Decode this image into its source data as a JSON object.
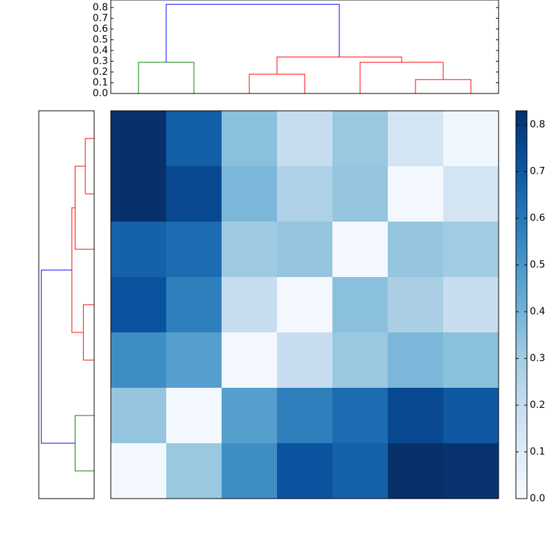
{
  "chart_data": [
    {
      "type": "dendrogram",
      "orientation": "top",
      "ylim": [
        0,
        0.87
      ],
      "yticks": [
        {
          "value": 0,
          "label": "0.0"
        },
        {
          "value": 0.1,
          "label": "0.1"
        },
        {
          "value": 0.2,
          "label": "0.2"
        },
        {
          "value": 0.3,
          "label": "0.3"
        },
        {
          "value": 0.4,
          "label": "0.4"
        },
        {
          "value": 0.5,
          "label": "0.5"
        },
        {
          "value": 0.6,
          "label": "0.6"
        },
        {
          "value": 0.7,
          "label": "0.7"
        },
        {
          "value": 0.8,
          "label": "0.8"
        }
      ],
      "links": [
        {
          "color": "#008000",
          "x": [
            0,
            0,
            1,
            1
          ],
          "y": [
            0,
            0.29,
            0.29,
            0
          ]
        },
        {
          "color": "#ff0000",
          "x": [
            2,
            2,
            3,
            3
          ],
          "y": [
            0,
            0.18,
            0.18,
            0
          ]
        },
        {
          "color": "#ff0000",
          "x": [
            5,
            5,
            6,
            6
          ],
          "y": [
            0,
            0.13,
            0.13,
            0
          ]
        },
        {
          "color": "#ff0000",
          "x": [
            4,
            4,
            5.5,
            5.5
          ],
          "y": [
            0,
            0.29,
            0.29,
            0.13
          ]
        },
        {
          "color": "#ff0000",
          "x": [
            2.5,
            2.5,
            4.75,
            4.75
          ],
          "y": [
            0.18,
            0.34,
            0.34,
            0.29
          ]
        },
        {
          "color": "#0000ff",
          "x": [
            0.5,
            0.5,
            3.625,
            3.625
          ],
          "y": [
            0.29,
            0.83,
            0.83,
            0.34
          ]
        }
      ]
    },
    {
      "type": "dendrogram",
      "orientation": "left",
      "xlim": [
        0,
        0.87
      ],
      "links": [
        {
          "color": "#ff0000",
          "x": [
            0,
            0,
            1,
            1
          ],
          "y": [
            0,
            0.14,
            0.14,
            0
          ]
        },
        {
          "color": "#ff0000",
          "x": [
            0.5,
            0.5,
            2,
            2
          ],
          "y": [
            0.14,
            0.3,
            0.3,
            0
          ]
        },
        {
          "color": "#ff0000",
          "x": [
            3,
            3,
            4,
            4
          ],
          "y": [
            0,
            0.17,
            0.17,
            0
          ]
        },
        {
          "color": "#ff0000",
          "x": [
            1.25,
            1.25,
            3.5,
            3.5
          ],
          "y": [
            0.3,
            0.35,
            0.35,
            0.17
          ]
        },
        {
          "color": "#008000",
          "x": [
            5,
            5,
            6,
            6
          ],
          "y": [
            0,
            0.3,
            0.3,
            0
          ]
        },
        {
          "color": "#0000ff",
          "x": [
            2.375,
            2.375,
            5.5,
            5.5
          ],
          "y": [
            0.35,
            0.83,
            0.83,
            0.3
          ]
        }
      ]
    },
    {
      "type": "heatmap",
      "values": [
        [
          0.83,
          0.68,
          0.35,
          0.2,
          0.32,
          0.15,
          0.03
        ],
        [
          0.83,
          0.75,
          0.38,
          0.27,
          0.33,
          0.02,
          0.15
        ],
        [
          0.67,
          0.64,
          0.31,
          0.33,
          0.02,
          0.33,
          0.3
        ],
        [
          0.72,
          0.58,
          0.2,
          0.02,
          0.35,
          0.28,
          0.2
        ],
        [
          0.53,
          0.47,
          0.02,
          0.2,
          0.32,
          0.38,
          0.35
        ],
        [
          0.33,
          0.02,
          0.47,
          0.58,
          0.64,
          0.75,
          0.7
        ],
        [
          0.02,
          0.32,
          0.53,
          0.72,
          0.67,
          0.83,
          0.82
        ]
      ],
      "colormap": [
        "#f7fbff",
        "#deebf7",
        "#c6dbef",
        "#9ecae1",
        "#6baed6",
        "#4292c6",
        "#2171b5",
        "#08519c",
        "#08306b"
      ],
      "clim": [
        0,
        0.83
      ],
      "colorbar_ticks": [
        {
          "value": 0,
          "label": "0.0"
        },
        {
          "value": 0.1,
          "label": "0.1"
        },
        {
          "value": 0.2,
          "label": "0.2"
        },
        {
          "value": 0.3,
          "label": "0.3"
        },
        {
          "value": 0.4,
          "label": "0.4"
        },
        {
          "value": 0.5,
          "label": "0.5"
        },
        {
          "value": 0.6,
          "label": "0.6"
        },
        {
          "value": 0.7,
          "label": "0.7"
        },
        {
          "value": 0.8,
          "label": "0.8"
        }
      ]
    }
  ]
}
